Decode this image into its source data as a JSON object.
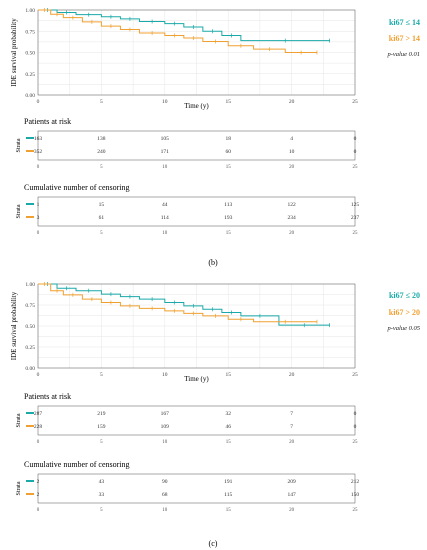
{
  "colors": {
    "teal": "#1aa9a9",
    "orange": "#f0a030",
    "grid": "#e6e6e6",
    "frame": "#555555"
  },
  "panel_labels": [
    "(b)",
    "(c)"
  ],
  "chart_data": [
    {
      "type": "line",
      "subtype": "kaplan-meier",
      "ylabel": "IDE survival probability",
      "xlabel": "Time (y)",
      "xlim": [
        0,
        25
      ],
      "ylim": [
        0,
        1
      ],
      "xticks": [
        "0",
        "5",
        "10",
        "15",
        "20",
        "25"
      ],
      "yticks": [
        "0.00",
        "0.25",
        "0.50",
        "0.75",
        "1.00"
      ],
      "legend": [
        "ki67 ≤ 14",
        "ki67 > 14"
      ],
      "pvalue": "p-value 0.01",
      "series": [
        {
          "name": "ki67 ≤ 14",
          "color": "#1aa9a9",
          "x": [
            0,
            1.5,
            3,
            5,
            6.5,
            8,
            10,
            11.5,
            13,
            14.5,
            16,
            23
          ],
          "y": [
            1.0,
            0.97,
            0.945,
            0.92,
            0.895,
            0.865,
            0.84,
            0.8,
            0.75,
            0.7,
            0.64,
            0.64
          ]
        },
        {
          "name": "ki67 > 14",
          "color": "#f0a030",
          "x": [
            0,
            1,
            2,
            3.5,
            5,
            6.5,
            8,
            10,
            11.5,
            13,
            15,
            17,
            19.5,
            22
          ],
          "y": [
            1.0,
            0.95,
            0.91,
            0.86,
            0.81,
            0.77,
            0.73,
            0.7,
            0.67,
            0.63,
            0.58,
            0.54,
            0.5,
            0.5
          ]
        }
      ],
      "risk_table": {
        "title": "Patients at risk",
        "strata_label": "Strata",
        "xticks": [
          "0",
          "5",
          "10",
          "15",
          "20",
          "25"
        ],
        "rows": [
          {
            "color": "#1aa9a9",
            "values": [
              "163",
              "138",
              "105",
              "18",
              "4",
              "0"
            ]
          },
          {
            "color": "#f0a030",
            "values": [
              "352",
              "240",
              "171",
              "60",
              "10",
              "0"
            ]
          }
        ]
      },
      "censor_table": {
        "title": "Cumulative number of censoring",
        "strata_label": "Strata",
        "xticks": [
          "0",
          "5",
          "10",
          "15",
          "20",
          "25"
        ],
        "rows": [
          {
            "color": "#1aa9a9",
            "values": [
              "1",
              "15",
              "44",
              "113",
              "122",
              "125"
            ]
          },
          {
            "color": "#f0a030",
            "values": [
              "3",
              "61",
              "114",
              "193",
              "234",
              "237"
            ]
          }
        ]
      }
    },
    {
      "type": "line",
      "subtype": "kaplan-meier",
      "ylabel": "IDE survival probability",
      "xlabel": "Time (y)",
      "xlim": [
        0,
        25
      ],
      "ylim": [
        0,
        1
      ],
      "xticks": [
        "0",
        "5",
        "10",
        "15",
        "20",
        "25"
      ],
      "yticks": [
        "0.00",
        "0.25",
        "0.50",
        "0.75",
        "1.00"
      ],
      "legend": [
        "ki67 ≤ 20",
        "ki67 > 20"
      ],
      "pvalue": "p-value 0.05",
      "series": [
        {
          "name": "ki67 ≤ 20",
          "color": "#1aa9a9",
          "x": [
            0,
            1.5,
            3,
            5,
            6.5,
            8,
            10,
            11.5,
            13,
            14.5,
            16,
            19,
            23
          ],
          "y": [
            1.0,
            0.95,
            0.92,
            0.88,
            0.85,
            0.82,
            0.78,
            0.74,
            0.7,
            0.66,
            0.62,
            0.51,
            0.51
          ]
        },
        {
          "name": "ki67 > 20",
          "color": "#f0a030",
          "x": [
            0,
            1,
            2,
            3.5,
            5,
            6.5,
            8,
            10,
            11.5,
            13,
            15,
            17,
            22
          ],
          "y": [
            1.0,
            0.92,
            0.87,
            0.82,
            0.78,
            0.74,
            0.71,
            0.68,
            0.65,
            0.62,
            0.58,
            0.55,
            0.55
          ]
        }
      ],
      "risk_table": {
        "title": "Patients at risk",
        "strata_label": "Strata",
        "xticks": [
          "0",
          "5",
          "10",
          "15",
          "20",
          "25"
        ],
        "rows": [
          {
            "color": "#1aa9a9",
            "values": [
              "287",
              "219",
              "167",
              "32",
              "7",
              "0"
            ]
          },
          {
            "color": "#f0a030",
            "values": [
              "228",
              "159",
              "109",
              "46",
              "7",
              "0"
            ]
          }
        ]
      },
      "censor_table": {
        "title": "Cumulative number of censoring",
        "strata_label": "Strata",
        "xticks": [
          "0",
          "5",
          "10",
          "15",
          "20",
          "25"
        ],
        "rows": [
          {
            "color": "#1aa9a9",
            "values": [
              "2",
              "43",
              "90",
              "191",
              "209",
              "212"
            ]
          },
          {
            "color": "#f0a030",
            "values": [
              "2",
              "33",
              "68",
              "115",
              "147",
              "150"
            ]
          }
        ]
      }
    }
  ]
}
